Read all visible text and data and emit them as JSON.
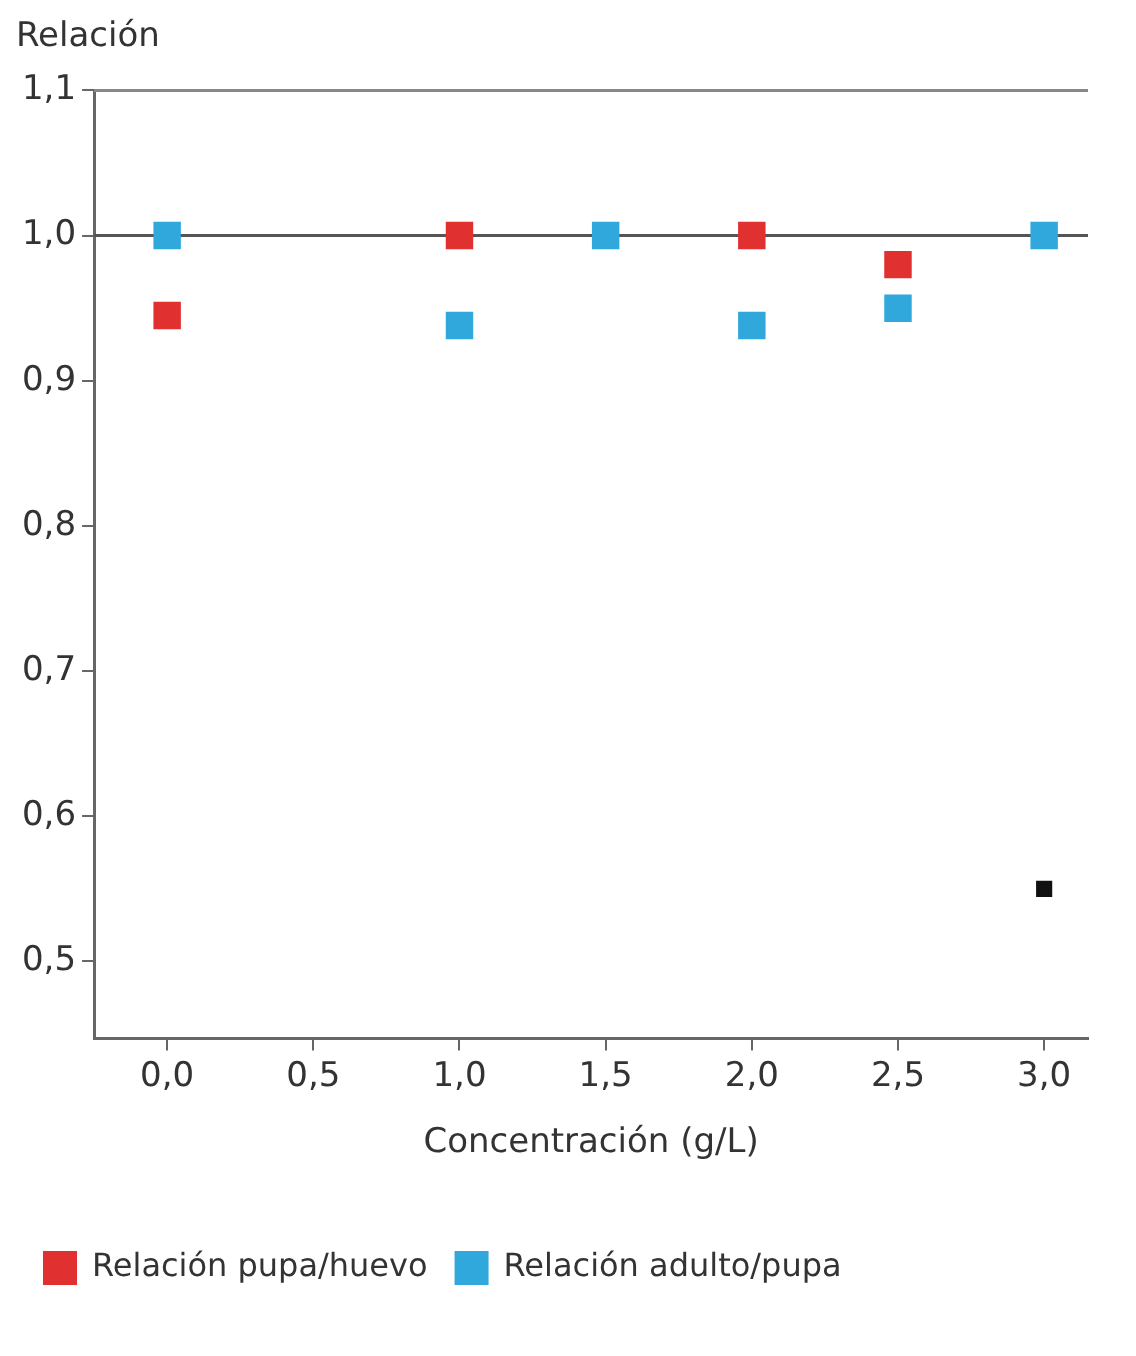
{
  "chart_data": {
    "type": "scatter",
    "ylabel": "Relación",
    "xlabel": "Concentración (g/L)",
    "series": [
      {
        "name": "Relación pupa/huevo",
        "color": "#e03030",
        "x": [
          0,
          1,
          2,
          2.5
        ],
        "values": [
          0.945,
          1.0,
          1.0,
          0.98
        ]
      },
      {
        "name": "Relación adulto/pupa",
        "color": "#30a8dc",
        "x": [
          0,
          1,
          1.5,
          2,
          2.5,
          3
        ],
        "values": [
          1.0,
          0.938,
          1.0,
          0.938,
          0.95,
          1.0
        ]
      },
      {
        "color": "#111111",
        "x": [
          3
        ],
        "values": [
          0.55
        ]
      }
    ],
    "marker": "square",
    "xlim": [
      -0.25,
      3.15
    ],
    "xticks": [
      {
        "value": 0,
        "label": "0,0"
      },
      {
        "value": 0.5,
        "label": "0,5"
      },
      {
        "value": 1,
        "label": "1,0"
      },
      {
        "value": 1.5,
        "label": "1,5"
      },
      {
        "value": 2,
        "label": "2,0"
      },
      {
        "value": 2.5,
        "label": "2,5"
      },
      {
        "value": 3,
        "label": "3,0"
      }
    ],
    "ylim": [
      0.447,
      1.1
    ],
    "yticks": [
      {
        "value": 0.5,
        "label": "0,5"
      },
      {
        "value": 0.6,
        "label": "0,6"
      },
      {
        "value": 0.7,
        "label": "0,7"
      },
      {
        "value": 0.8,
        "label": "0,8"
      },
      {
        "value": 0.9,
        "label": "0,9"
      },
      {
        "value": 1.0,
        "label": "1,0"
      },
      {
        "value": 1.1,
        "label": "1,1"
      }
    ],
    "ref_lines": [
      {
        "axis": "y",
        "value": 1.0,
        "color": "#555555"
      }
    ],
    "grid": false,
    "legend": "bottom"
  }
}
